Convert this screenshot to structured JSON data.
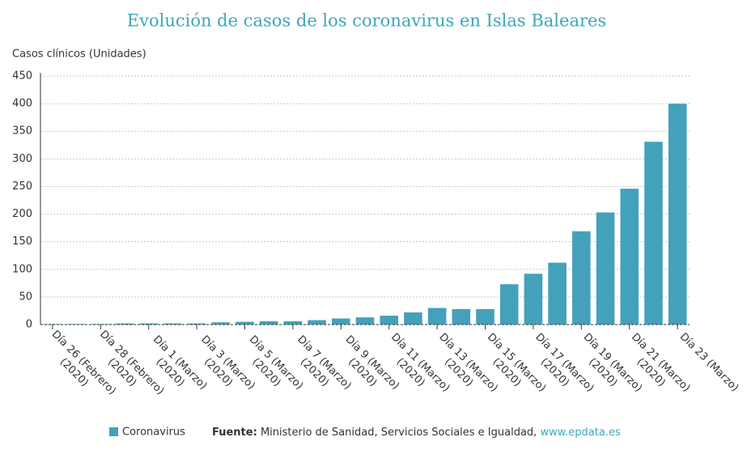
{
  "chart_data": {
    "type": "bar",
    "title": "Evolución de casos de los coronavirus en Islas Baleares",
    "y_label": "Casos clínicos (Unidades)",
    "categories": [
      "Día 26 (Febrero) (2020)",
      null,
      "Día 28 (Febrero) (2020)",
      null,
      "Día 1 (Marzo) (2020)",
      null,
      "Día 3 (Marzo) (2020)",
      null,
      "Día 5 (Marzo) (2020)",
      null,
      "Día 7 (Marzo) (2020)",
      null,
      "Día 9 (Marzo) (2020)",
      null,
      "Día 11 (Marzo) (2020)",
      null,
      "Día 13 (Marzo) (2020)",
      null,
      "Día 15 (Marzo) (2020)",
      null,
      "Día 17 (Marzo) (2020)",
      null,
      "Día 19 (Marzo) (2020)",
      null,
      "Día 21 (Marzo) (2020)",
      null,
      "Día 23 (Marzo)"
    ],
    "series": [
      {
        "name": "Coronavirus",
        "color": "#43a1bb",
        "values": [
          1,
          1,
          1,
          2,
          2,
          2,
          2,
          4,
          5,
          6,
          6,
          8,
          11,
          13,
          16,
          22,
          30,
          28,
          28,
          73,
          92,
          112,
          169,
          203,
          246,
          331,
          400
        ]
      }
    ],
    "ylim": [
      0,
      450
    ],
    "yticks": [
      0,
      50,
      100,
      150,
      200,
      250,
      300,
      350,
      400,
      450
    ],
    "grid": true,
    "source": {
      "label": "Fuente:",
      "text": "Ministerio de Sanidad, Servicios Sociales e Igualdad,",
      "link": "www.epdata.es"
    }
  }
}
